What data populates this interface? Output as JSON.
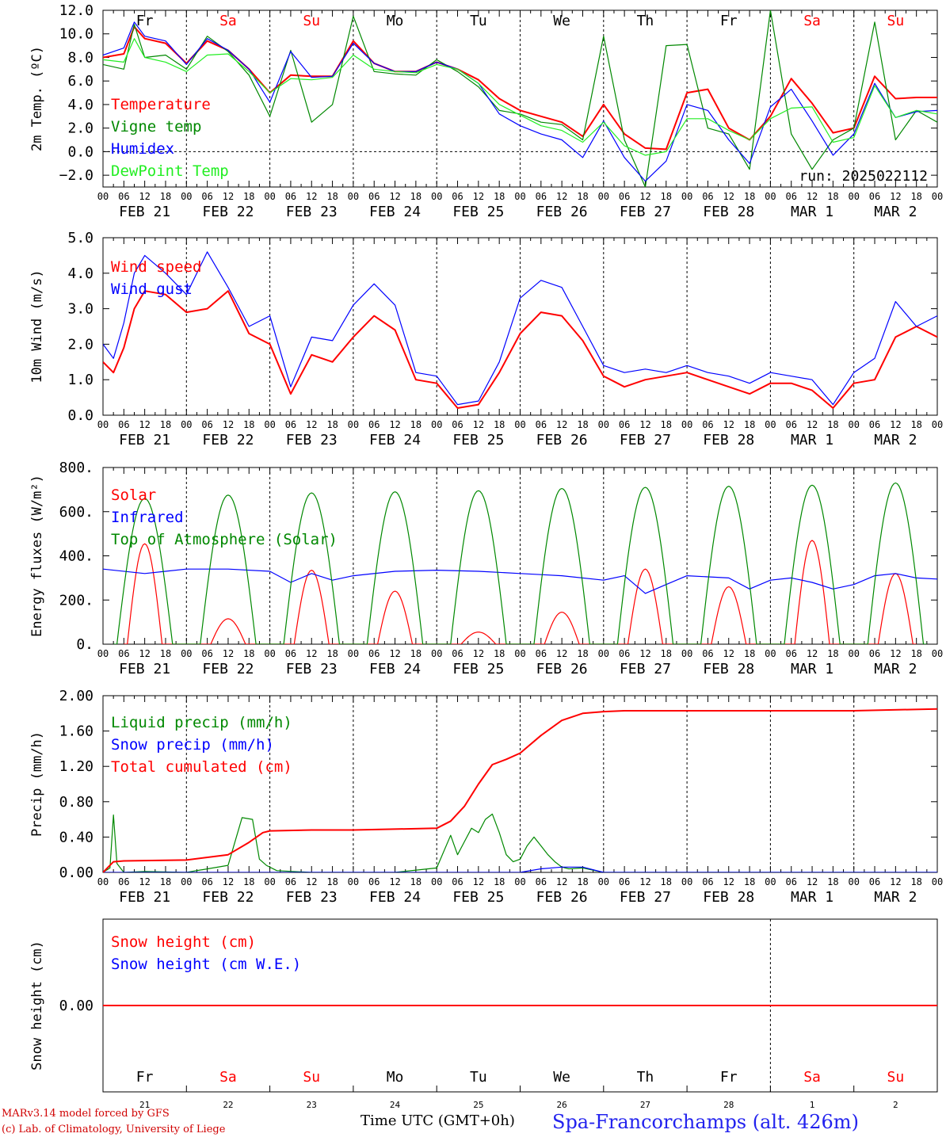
{
  "footer": {
    "credit_line1": "MARv3.14 model forced by GFS",
    "credit_line2": "(c) Lab. of Climatology, University of Liege",
    "time_label": "Time UTC (GMT+0h)",
    "station": "Spa-Francorchamps (alt. 426m)"
  },
  "run_label": "run: 2025022112",
  "days": [
    "Fr",
    "Sa",
    "Su",
    "Mo",
    "Tu",
    "We",
    "Th",
    "Fr",
    "Sa",
    "Su"
  ],
  "weekend_days": [
    "Sa",
    "Su"
  ],
  "date_labels": [
    "FEB 21",
    "FEB 22",
    "FEB 23",
    "FEB 24",
    "FEB 25",
    "FEB 26",
    "FEB 27",
    "FEB 28",
    "MAR  1",
    "MAR  2"
  ],
  "day_numbers": [
    "21",
    "22",
    "23",
    "24",
    "25",
    "26",
    "27",
    "28",
    "1",
    "2"
  ],
  "hour_ticks": [
    "00",
    "06",
    "12",
    "18"
  ],
  "colors": {
    "red": "#ff0000",
    "green": "#008800",
    "blue": "#0000ff",
    "lightgreen": "#22ee22",
    "weekend": "#ff0000"
  },
  "chart_data": [
    {
      "type": "line",
      "ylabel": "2m Temp. (ºC)",
      "ylim": [
        -3,
        12
      ],
      "yticks": [
        "12.0",
        "10.0",
        "8.0",
        "6.0",
        "4.0",
        "2.0",
        "0.0",
        "−2.0"
      ],
      "ytick_values": [
        12,
        10,
        8,
        6,
        4,
        2,
        0,
        -2
      ],
      "zero_line": true,
      "show_days": true,
      "series": [
        {
          "name": "Temperature",
          "color": "#ff0000",
          "x": [
            0,
            6,
            9,
            12,
            18,
            24,
            30,
            36,
            42,
            48,
            54,
            60,
            66,
            72,
            78,
            84,
            90,
            96,
            102,
            108,
            114,
            120,
            126,
            132,
            138,
            144,
            150,
            156,
            162,
            168,
            174,
            180,
            186,
            192,
            198,
            204,
            210,
            216,
            222,
            228,
            234,
            240
          ],
          "values": [
            8,
            8.3,
            10.6,
            9.6,
            9.2,
            7.5,
            9.4,
            8.6,
            7,
            5,
            6.5,
            6.4,
            6.4,
            9.4,
            7.5,
            6.8,
            6.8,
            7.6,
            7,
            6.1,
            4.5,
            3.5,
            3,
            2.5,
            1.3,
            4,
            1.5,
            0.3,
            0.2,
            5,
            5.3,
            2,
            1,
            3,
            6.2,
            4.1,
            1.6,
            2,
            6.4,
            4.5,
            4.6,
            4.6
          ]
        },
        {
          "name": "Vigne temp",
          "color": "#008800",
          "x": [
            0,
            6,
            9,
            12,
            18,
            24,
            30,
            36,
            42,
            48,
            54,
            60,
            66,
            72,
            78,
            84,
            90,
            96,
            102,
            108,
            114,
            120,
            126,
            132,
            138,
            144,
            150,
            156,
            162,
            168,
            174,
            180,
            186,
            192,
            198,
            204,
            210,
            216,
            222,
            228,
            234,
            240
          ],
          "values": [
            7.4,
            7,
            10.8,
            8,
            8.2,
            7,
            9.8,
            8.5,
            6.5,
            3,
            8.6,
            2.5,
            4,
            11.5,
            6.8,
            6.6,
            6.5,
            7.8,
            6.8,
            5.5,
            3.5,
            3.2,
            2.5,
            2.3,
            1,
            9.8,
            1,
            -3,
            9,
            9.1,
            2,
            1.5,
            -1.5,
            12,
            1.5,
            -1.5,
            1,
            2,
            11,
            1,
            3.5,
            2.5
          ]
        },
        {
          "name": "Humidex",
          "color": "#0000ff",
          "x": [
            0,
            6,
            9,
            12,
            18,
            24,
            30,
            36,
            42,
            48,
            54,
            60,
            66,
            72,
            78,
            84,
            90,
            96,
            102,
            108,
            114,
            120,
            126,
            132,
            138,
            144,
            150,
            156,
            162,
            168,
            174,
            180,
            186,
            192,
            198,
            204,
            210,
            216,
            222,
            228,
            234,
            240
          ],
          "values": [
            8.2,
            8.8,
            11,
            9.8,
            9.4,
            7.4,
            9.6,
            8.6,
            7,
            4.2,
            8.5,
            6.3,
            6.4,
            9.2,
            7.5,
            6.8,
            6.8,
            7.6,
            7,
            5.8,
            3.2,
            2.2,
            1.5,
            1,
            -0.5,
            2.6,
            -0.5,
            -2.5,
            -0.8,
            4,
            3.5,
            1,
            -1,
            3.8,
            5.3,
            2.6,
            -0.3,
            1.5,
            5.8,
            2.9,
            3.4,
            3.5
          ]
        },
        {
          "name": "DewPoint Temp",
          "color": "#22ee22",
          "x": [
            0,
            6,
            9,
            12,
            18,
            24,
            30,
            36,
            42,
            48,
            54,
            60,
            66,
            72,
            78,
            84,
            90,
            96,
            102,
            108,
            114,
            120,
            126,
            132,
            138,
            144,
            150,
            156,
            162,
            168,
            174,
            180,
            186,
            192,
            198,
            204,
            210,
            216,
            222,
            228,
            234,
            240
          ],
          "values": [
            7.8,
            7.6,
            9.6,
            8,
            7.6,
            6.8,
            8.2,
            8.3,
            6.8,
            5,
            6.2,
            6.1,
            6.3,
            8.2,
            7,
            6.8,
            6.7,
            7.4,
            7,
            5.8,
            4,
            3.1,
            2.2,
            1.8,
            0.8,
            2.5,
            0.5,
            -0.3,
            0,
            2.8,
            2.8,
            1.8,
            1,
            2.8,
            3.7,
            3.8,
            0.8,
            1.2,
            5.6,
            2.9,
            3.5,
            3.2
          ]
        }
      ]
    },
    {
      "type": "line",
      "ylabel": "10m Wind (m/s)",
      "ylim": [
        0,
        5
      ],
      "yticks": [
        "5.0",
        "4.0",
        "3.0",
        "2.0",
        "1.0",
        "0.0"
      ],
      "ytick_values": [
        5,
        4,
        3,
        2,
        1,
        0
      ],
      "series": [
        {
          "name": "Wind speed",
          "color": "#ff0000",
          "x": [
            0,
            3,
            6,
            9,
            12,
            18,
            24,
            30,
            36,
            42,
            48,
            54,
            60,
            66,
            72,
            78,
            84,
            90,
            96,
            102,
            108,
            114,
            120,
            126,
            132,
            138,
            144,
            150,
            156,
            162,
            168,
            174,
            180,
            186,
            192,
            198,
            204,
            210,
            216,
            222,
            228,
            234,
            240
          ],
          "values": [
            1.5,
            1.2,
            1.9,
            3,
            3.5,
            3.4,
            2.9,
            3,
            3.5,
            2.3,
            2,
            0.6,
            1.7,
            1.5,
            2.2,
            2.8,
            2.4,
            1,
            0.9,
            0.2,
            0.3,
            1.2,
            2.3,
            2.9,
            2.8,
            2.1,
            1.1,
            0.8,
            1,
            1.1,
            1.2,
            1,
            0.8,
            0.6,
            0.9,
            0.9,
            0.7,
            0.2,
            0.9,
            1,
            2.2,
            2.5,
            2.2
          ]
        },
        {
          "name": "Wind gust",
          "color": "#0000ff",
          "x": [
            0,
            3,
            6,
            9,
            12,
            18,
            24,
            30,
            36,
            42,
            48,
            54,
            60,
            66,
            72,
            78,
            84,
            90,
            96,
            102,
            108,
            114,
            120,
            126,
            132,
            138,
            144,
            150,
            156,
            162,
            168,
            174,
            180,
            186,
            192,
            198,
            204,
            210,
            216,
            222,
            228,
            234,
            240
          ],
          "values": [
            2,
            1.6,
            2.6,
            4,
            4.5,
            4,
            3.4,
            4.6,
            3.6,
            2.5,
            2.8,
            0.8,
            2.2,
            2.1,
            3.1,
            3.7,
            3.1,
            1.2,
            1.1,
            0.3,
            0.4,
            1.5,
            3.3,
            3.8,
            3.6,
            2.5,
            1.4,
            1.2,
            1.3,
            1.2,
            1.4,
            1.2,
            1.1,
            0.9,
            1.2,
            1.1,
            1,
            0.3,
            1.2,
            1.6,
            3.2,
            2.5,
            2.8
          ]
        }
      ]
    },
    {
      "type": "line",
      "ylabel": "Energy fluxes (W/m²)",
      "ylim": [
        0,
        800
      ],
      "yticks": [
        "800.",
        "600.",
        "400.",
        "200.",
        "0."
      ],
      "ytick_values": [
        800,
        600,
        400,
        200,
        0
      ],
      "series": [
        {
          "name": "Solar",
          "color": "#ff0000",
          "solar_peaks": [
            455,
            115,
            335,
            240,
            55,
            145,
            340,
            260,
            470,
            320
          ]
        },
        {
          "name": "Infrared",
          "color": "#0000ff",
          "x": [
            0,
            12,
            18,
            24,
            36,
            48,
            54,
            60,
            66,
            72,
            84,
            96,
            108,
            120,
            126,
            132,
            144,
            150,
            156,
            162,
            168,
            180,
            186,
            192,
            198,
            204,
            210,
            216,
            222,
            228,
            234,
            240
          ],
          "values": [
            340,
            320,
            330,
            340,
            340,
            330,
            280,
            320,
            290,
            310,
            330,
            335,
            330,
            320,
            315,
            310,
            290,
            310,
            230,
            270,
            310,
            300,
            250,
            290,
            300,
            280,
            250,
            270,
            310,
            320,
            300,
            295
          ]
        },
        {
          "name": "Top of Atmosphere (Solar)",
          "color": "#008800",
          "toa_peaks": [
            660,
            675,
            685,
            690,
            695,
            705,
            710,
            715,
            720,
            730
          ]
        }
      ]
    },
    {
      "type": "line",
      "ylabel": "Precip (mm/h)",
      "ylim": [
        0,
        2
      ],
      "yticks": [
        "2.00",
        "1.60",
        "1.20",
        "0.80",
        "0.40",
        "0.00"
      ],
      "ytick_values": [
        2,
        1.6,
        1.2,
        0.8,
        0.4,
        0
      ],
      "series": [
        {
          "name": "Liquid precip (mm/h)",
          "color": "#008800",
          "x": [
            0,
            2,
            3,
            4,
            6,
            12,
            24,
            36,
            40,
            43,
            45,
            47,
            50,
            60,
            84,
            96,
            100,
            102,
            104,
            106,
            108,
            110,
            112,
            114,
            116,
            118,
            120,
            122,
            124,
            126,
            128,
            130,
            132,
            134,
            138,
            144,
            240
          ],
          "values": [
            0,
            0.05,
            0.65,
            0.1,
            0,
            0.01,
            0,
            0.08,
            0.62,
            0.6,
            0.15,
            0.08,
            0.02,
            0,
            0,
            0.05,
            0.42,
            0.2,
            0.35,
            0.5,
            0.45,
            0.6,
            0.66,
            0.45,
            0.2,
            0.12,
            0.15,
            0.3,
            0.4,
            0.3,
            0.2,
            0.12,
            0.06,
            0.04,
            0.05,
            0,
            0
          ]
        },
        {
          "name": "Snow precip (mm/h)",
          "color": "#0000ff",
          "x": [
            0,
            120,
            126,
            132,
            138,
            144,
            240
          ],
          "values": [
            0,
            0,
            0.04,
            0.06,
            0.06,
            0,
            0
          ]
        },
        {
          "name": "Total cumulated (cm)",
          "color": "#ff0000",
          "x": [
            0,
            3,
            6,
            24,
            36,
            42,
            46,
            48,
            60,
            72,
            96,
            100,
            104,
            108,
            112,
            116,
            120,
            126,
            132,
            138,
            144,
            150,
            192,
            216,
            240
          ],
          "values": [
            0,
            0.12,
            0.13,
            0.14,
            0.2,
            0.34,
            0.45,
            0.47,
            0.48,
            0.48,
            0.5,
            0.58,
            0.75,
            1,
            1.22,
            1.28,
            1.35,
            1.55,
            1.72,
            1.8,
            1.82,
            1.83,
            1.83,
            1.83,
            1.85
          ]
        }
      ]
    },
    {
      "type": "line",
      "ylabel": "Snow height (cm)",
      "ylim": [
        -1,
        1
      ],
      "yticks": [
        "0.00"
      ],
      "ytick_values": [
        0
      ],
      "show_days_bottom": true,
      "series": [
        {
          "name": "Snow height (cm)",
          "color": "#ff0000",
          "x": [
            0,
            240
          ],
          "values": [
            0,
            0
          ]
        },
        {
          "name": "Snow height (cm W.E.)",
          "color": "#0000ff",
          "x": [],
          "values": []
        }
      ]
    }
  ]
}
